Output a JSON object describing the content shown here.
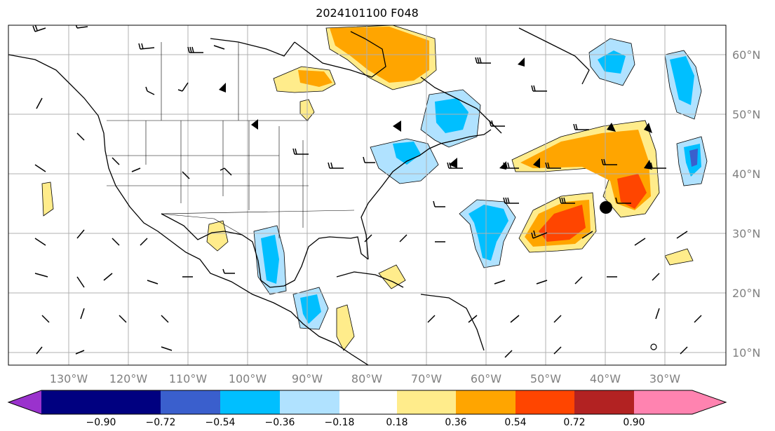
{
  "title": "2024101100 F048",
  "longitude_labels": [
    "130°W",
    "120°W",
    "110°W",
    "100°W",
    "90°W",
    "80°W",
    "70°W",
    "60°W",
    "50°W",
    "40°W",
    "30°W"
  ],
  "latitude_labels": [
    "60°N",
    "50°N",
    "40°N",
    "30°N",
    "20°N",
    "10°N"
  ],
  "colorbar": {
    "colors": [
      "#9a32cd",
      "#000080",
      "#3a5fcd",
      "#00bfff",
      "#b0e2ff",
      "#ffffff",
      "#ffec8b",
      "#ffa500",
      "#ff4500",
      "#b22222",
      "#ff83b0"
    ],
    "tick_labels": [
      "−0.90",
      "−0.72",
      "−0.54",
      "−0.36",
      "−0.18",
      "0.18",
      "0.36",
      "0.54",
      "0.72",
      "0.90"
    ]
  },
  "colors": {
    "coastline": "#000000",
    "gridline": "#b0b0b0",
    "axis_label": "#808080"
  }
}
